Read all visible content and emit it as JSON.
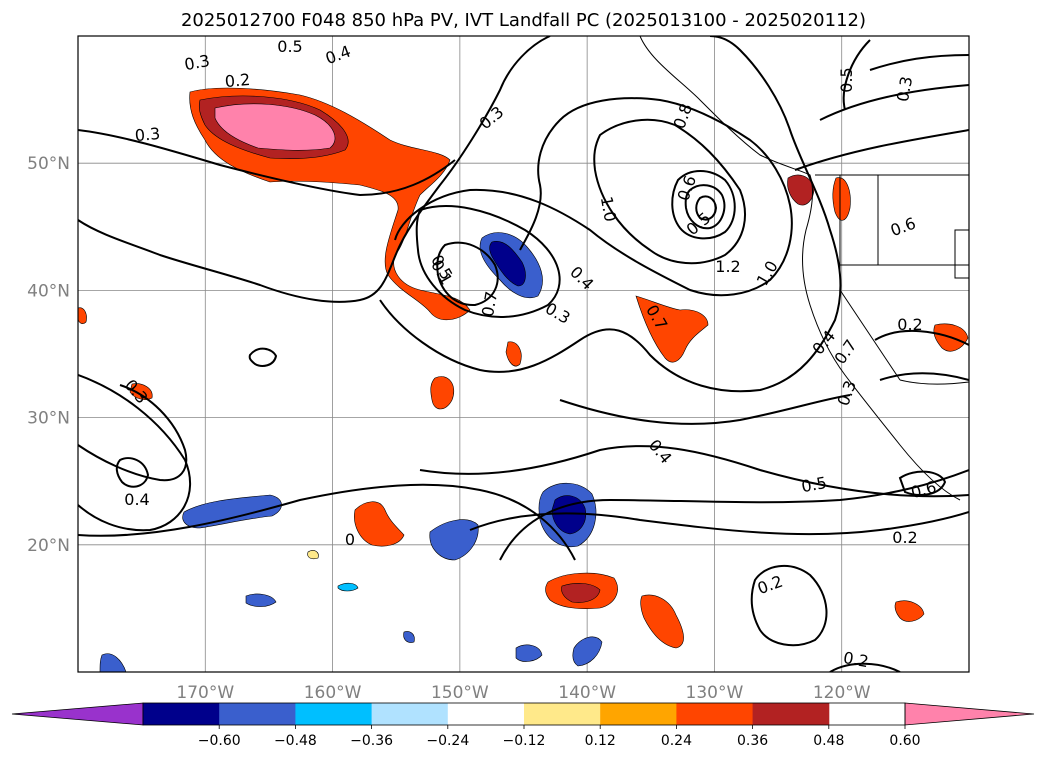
{
  "title": "2025012700 F048 850 hPa PV, IVT Landfall PC (2025013100 - 2025020112)",
  "map": {
    "lon_range": [
      -180,
      -110
    ],
    "lat_range": [
      10,
      60
    ],
    "lat_ticks": [
      {
        "value": 50,
        "label": "50°N"
      },
      {
        "value": 40,
        "label": "40°N"
      },
      {
        "value": 30,
        "label": "30°N"
      },
      {
        "value": 20,
        "label": "20°N"
      }
    ],
    "lon_ticks": [
      {
        "value": -170,
        "label": "170°W"
      },
      {
        "value": -160,
        "label": "160°W"
      },
      {
        "value": -150,
        "label": "150°W"
      },
      {
        "value": -140,
        "label": "140°W"
      },
      {
        "value": -130,
        "label": "130°W"
      },
      {
        "value": -120,
        "label": "120°W"
      }
    ],
    "gridlines": true,
    "contour_labels": [
      "0.3",
      "0.2",
      "0.3",
      "0.4",
      "0.5",
      "0.3",
      "0.4",
      "0.3",
      "0.5",
      "0.7",
      "0.6",
      "0.5",
      "1.0",
      "1.2",
      "1.0",
      "0.8",
      "0.7",
      "0.1",
      "0.5",
      "0.7",
      "0.4",
      "0.3",
      "0.3",
      "0.4",
      "0.6",
      "0.2",
      "0.6",
      "0.5",
      "0.4",
      "0.2",
      "0.2",
      "0.2",
      "0",
      "0.3"
    ]
  },
  "colorbar": {
    "colors": [
      "#9932cc",
      "#00008b",
      "#3a5fcd",
      "#00bfff",
      "#b0e2ff",
      "#ffffff",
      "#ffe98a",
      "#ffa500",
      "#ff4500",
      "#b22222",
      "#ff82ab"
    ],
    "tick_labels": [
      "−0.60",
      "−0.48",
      "−0.36",
      "−0.24",
      "−0.12",
      "0.12",
      "0.24",
      "0.36",
      "0.48",
      "0.60"
    ],
    "tick_values": [
      -0.6,
      -0.48,
      -0.36,
      -0.24,
      -0.12,
      0.12,
      0.24,
      0.36,
      0.48,
      0.6
    ],
    "extend": "both"
  }
}
